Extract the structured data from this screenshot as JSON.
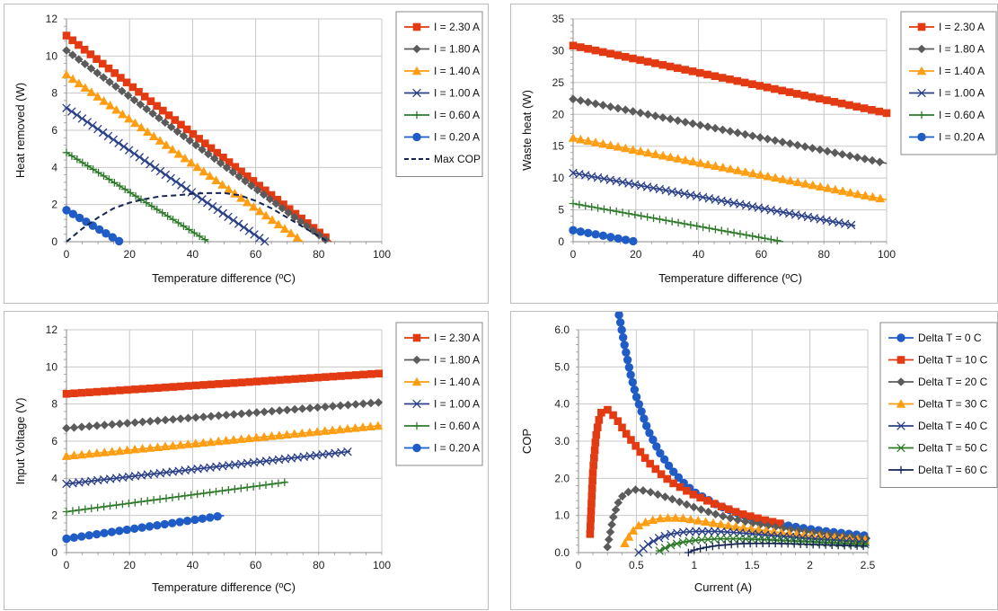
{
  "colors": {
    "red": "#e23a12",
    "gray": "#5b5b5b",
    "orange": "#ff9d13",
    "navy": "#2a3f87",
    "green": "#2d7a29",
    "blue": "#1f5cc6",
    "dark_navy": "#14254f",
    "grid": "#c8c8c8"
  },
  "chart_data": [
    {
      "type": "line",
      "xlabel": "Temperature difference (ºC)",
      "ylabel": "Heat removed (W)",
      "xlim": [
        0,
        100
      ],
      "ylim": [
        0,
        12
      ],
      "xticks": [
        0,
        20,
        40,
        60,
        80,
        100
      ],
      "yticks": [
        0,
        2,
        4,
        6,
        8,
        10,
        12
      ],
      "grid": true,
      "legend_position": "right",
      "series": [
        {
          "name": "I = 2.30 A",
          "marker": "square",
          "color": "#e23a12",
          "x": [
            0,
            84
          ],
          "y": [
            11.1,
            0
          ]
        },
        {
          "name": "I = 1.80 A",
          "marker": "diamond",
          "color": "#5b5b5b",
          "x": [
            0,
            83
          ],
          "y": [
            10.3,
            0
          ]
        },
        {
          "name": "I = 1.40 A",
          "marker": "triangle",
          "color": "#ff9d13",
          "x": [
            0,
            75
          ],
          "y": [
            9.0,
            0
          ]
        },
        {
          "name": "I = 1.00 A",
          "marker": "x",
          "color": "#2a3f87",
          "x": [
            0,
            63
          ],
          "y": [
            7.2,
            0
          ]
        },
        {
          "name": "I = 0.60 A",
          "marker": "plus",
          "color": "#2d7a29",
          "x": [
            0,
            45
          ],
          "y": [
            4.8,
            0
          ]
        },
        {
          "name": "I = 0.20 A",
          "marker": "circle",
          "color": "#1f5cc6",
          "x": [
            0,
            17
          ],
          "y": [
            1.7,
            0
          ]
        },
        {
          "name": "Max COP",
          "marker": "none",
          "dash": true,
          "color": "#14254f",
          "x": [
            0,
            5,
            10,
            15,
            20,
            25,
            30,
            35,
            40,
            45,
            50,
            55,
            60,
            65,
            70,
            75,
            80,
            83
          ],
          "y": [
            0,
            0.7,
            1.3,
            1.8,
            2.1,
            2.3,
            2.45,
            2.5,
            2.58,
            2.62,
            2.62,
            2.5,
            2.2,
            1.8,
            1.3,
            0.8,
            0.3,
            0
          ]
        }
      ]
    },
    {
      "type": "line",
      "xlabel": "Temperature difference (ºC)",
      "ylabel": "Waste heat (W)",
      "xlim": [
        0,
        100
      ],
      "ylim": [
        0,
        35
      ],
      "xticks": [
        0,
        20,
        40,
        60,
        80,
        100
      ],
      "yticks": [
        0,
        5,
        10,
        15,
        20,
        25,
        30,
        35
      ],
      "grid": true,
      "legend_position": "right",
      "series": [
        {
          "name": "I = 2.30 A",
          "marker": "square",
          "color": "#e23a12",
          "x": [
            0,
            100
          ],
          "y": [
            30.8,
            20.2
          ]
        },
        {
          "name": "I = 1.80 A",
          "marker": "diamond",
          "color": "#5b5b5b",
          "x": [
            0,
            100
          ],
          "y": [
            22.4,
            12.3
          ]
        },
        {
          "name": "I = 1.40 A",
          "marker": "triangle",
          "color": "#ff9d13",
          "x": [
            0,
            100
          ],
          "y": [
            16.3,
            6.6
          ]
        },
        {
          "name": "I = 1.00 A",
          "marker": "x",
          "color": "#2a3f87",
          "x": [
            0,
            90
          ],
          "y": [
            10.8,
            2.5
          ]
        },
        {
          "name": "I = 0.60 A",
          "marker": "plus",
          "color": "#2d7a29",
          "x": [
            0,
            67
          ],
          "y": [
            6.0,
            0
          ]
        },
        {
          "name": "I = 0.20 A",
          "marker": "circle",
          "color": "#1f5cc6",
          "x": [
            0,
            20
          ],
          "y": [
            1.8,
            0
          ]
        }
      ]
    },
    {
      "type": "line",
      "xlabel": "Temperature difference (ºC)",
      "ylabel": "Input Voltage (V)",
      "xlim": [
        0,
        100
      ],
      "ylim": [
        0,
        12
      ],
      "xticks": [
        0,
        20,
        40,
        60,
        80,
        100
      ],
      "yticks": [
        0,
        2,
        4,
        6,
        8,
        10,
        12
      ],
      "grid": true,
      "legend_position": "right",
      "series": [
        {
          "name": "I = 2.30 A",
          "marker": "square",
          "color": "#e23a12",
          "x": [
            0,
            100
          ],
          "y": [
            8.55,
            9.65
          ]
        },
        {
          "name": "I = 1.80 A",
          "marker": "diamond",
          "color": "#5b5b5b",
          "x": [
            0,
            100
          ],
          "y": [
            6.7,
            8.1
          ]
        },
        {
          "name": "I = 1.40 A",
          "marker": "triangle",
          "color": "#ff9d13",
          "x": [
            0,
            100
          ],
          "y": [
            5.2,
            6.85
          ]
        },
        {
          "name": "I = 1.00 A",
          "marker": "x",
          "color": "#2a3f87",
          "x": [
            0,
            90
          ],
          "y": [
            3.7,
            5.45
          ]
        },
        {
          "name": "I = 0.60 A",
          "marker": "plus",
          "color": "#2d7a29",
          "x": [
            0,
            70
          ],
          "y": [
            2.2,
            3.8
          ]
        },
        {
          "name": "I = 0.20 A",
          "marker": "circle",
          "color": "#1f5cc6",
          "x": [
            0,
            50
          ],
          "y": [
            0.75,
            2.0
          ]
        }
      ]
    },
    {
      "type": "line",
      "xlabel": "Current (A)",
      "ylabel": "COP",
      "xlim": [
        0,
        2.5
      ],
      "ylim": [
        0,
        6
      ],
      "xticks": [
        0,
        0.5,
        1,
        1.5,
        2,
        2.5
      ],
      "xticklabels": [
        "0",
        "0.5",
        "1",
        "1.5",
        "2",
        "2.5"
      ],
      "yticks": [
        0,
        1,
        2,
        3,
        4,
        5,
        6
      ],
      "yticklabels": [
        "0.0",
        "1.0",
        "2.0",
        "3.0",
        "4.0",
        "5.0",
        "6.0"
      ],
      "grid": true,
      "legend_position": "right",
      "series": [
        {
          "name": "Delta T = 0 C",
          "marker": "circle",
          "color": "#1f5cc6",
          "x": [
            0.35,
            0.4,
            0.45,
            0.5,
            0.6,
            0.7,
            0.8,
            0.9,
            1.0,
            1.2,
            1.4,
            1.6,
            1.8,
            2.0,
            2.2,
            2.5
          ],
          "y": [
            6.4,
            5.55,
            4.8,
            4.2,
            3.3,
            2.7,
            2.25,
            1.9,
            1.63,
            1.28,
            1.03,
            0.86,
            0.73,
            0.63,
            0.55,
            0.45
          ]
        },
        {
          "name": "Delta T = 10 C",
          "marker": "square",
          "color": "#e23a12",
          "x": [
            0.1,
            0.125,
            0.15,
            0.175,
            0.2,
            0.25,
            0.3,
            0.35,
            0.4,
            0.5,
            0.6,
            0.7,
            0.8,
            1.0,
            1.2,
            1.4,
            1.6,
            1.75
          ],
          "y": [
            0.5,
            2.2,
            3.1,
            3.55,
            3.8,
            3.85,
            3.7,
            3.5,
            3.25,
            2.85,
            2.45,
            2.15,
            1.9,
            1.55,
            1.28,
            1.05,
            0.88,
            0.78
          ]
        },
        {
          "name": "Delta T = 20 C",
          "marker": "diamond",
          "color": "#5b5b5b",
          "x": [
            0.25,
            0.3,
            0.35,
            0.4,
            0.5,
            0.6,
            0.7,
            0.8,
            1.0,
            1.2,
            1.4,
            1.6,
            1.8,
            2.0,
            2.2,
            2.5
          ],
          "y": [
            0.15,
            0.95,
            1.4,
            1.6,
            1.7,
            1.65,
            1.55,
            1.45,
            1.22,
            1.02,
            0.86,
            0.74,
            0.64,
            0.55,
            0.48,
            0.38
          ]
        },
        {
          "name": "Delta T = 30 C",
          "marker": "triangle",
          "color": "#ff9d13",
          "x": [
            0.4,
            0.45,
            0.5,
            0.6,
            0.7,
            0.8,
            0.9,
            1.0,
            1.2,
            1.4,
            1.6,
            1.8,
            2.0,
            2.2,
            2.5
          ],
          "y": [
            0.25,
            0.5,
            0.7,
            0.85,
            0.92,
            0.94,
            0.93,
            0.88,
            0.78,
            0.68,
            0.6,
            0.52,
            0.46,
            0.41,
            0.34
          ]
        },
        {
          "name": "Delta T = 40 C",
          "marker": "x",
          "color": "#2a3f87",
          "x": [
            0.52,
            0.6,
            0.7,
            0.8,
            0.9,
            1.0,
            1.2,
            1.4,
            1.6,
            1.8,
            2.0,
            2.2,
            2.5
          ],
          "y": [
            0.0,
            0.22,
            0.4,
            0.5,
            0.55,
            0.57,
            0.57,
            0.53,
            0.48,
            0.43,
            0.38,
            0.34,
            0.28
          ]
        },
        {
          "name": "Delta T = 50 C",
          "marker": "star",
          "color": "#2d7a29",
          "x": [
            0.7,
            0.8,
            0.9,
            1.0,
            1.2,
            1.4,
            1.6,
            1.8,
            2.0,
            2.2,
            2.5
          ],
          "y": [
            0.05,
            0.2,
            0.28,
            0.33,
            0.37,
            0.37,
            0.35,
            0.32,
            0.29,
            0.26,
            0.22
          ]
        },
        {
          "name": "Delta T = 60 C",
          "marker": "plus",
          "color": "#14254f",
          "x": [
            0.95,
            1.0,
            1.1,
            1.2,
            1.4,
            1.6,
            1.8,
            2.0,
            2.2,
            2.5
          ],
          "y": [
            0.0,
            0.07,
            0.14,
            0.19,
            0.24,
            0.25,
            0.24,
            0.22,
            0.2,
            0.17
          ]
        }
      ]
    }
  ]
}
